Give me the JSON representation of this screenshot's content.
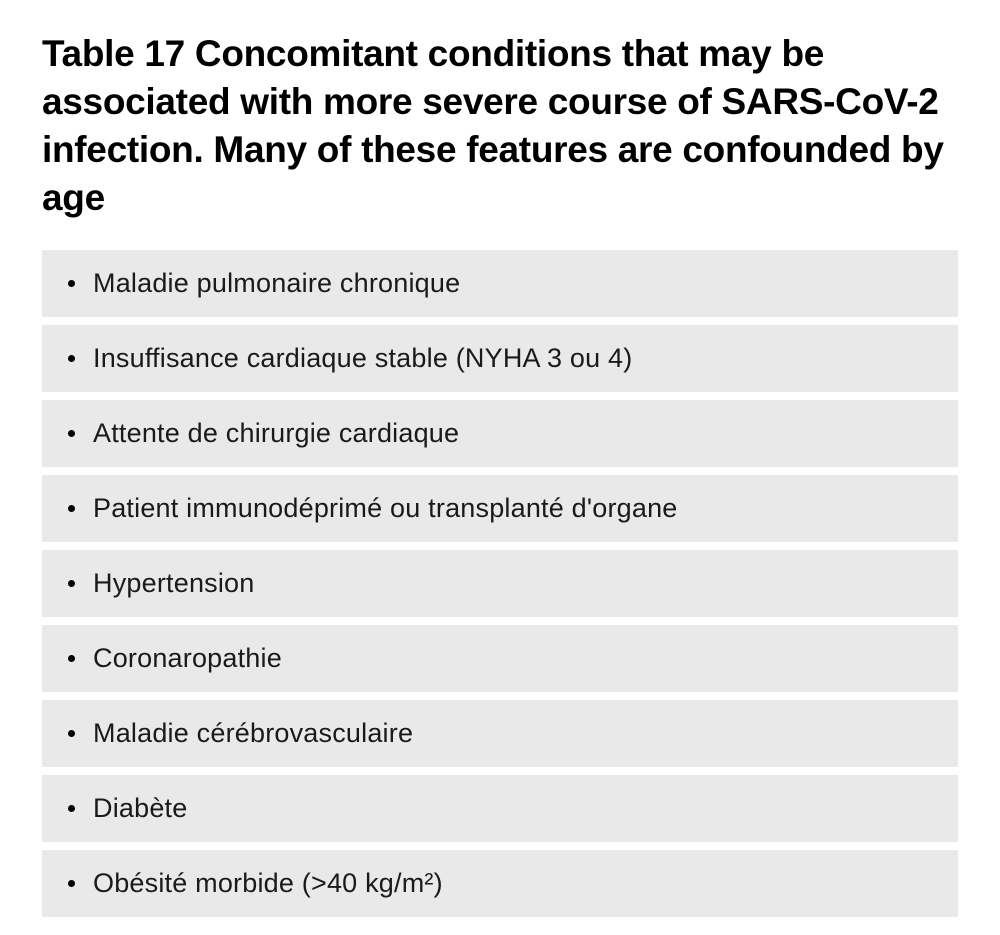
{
  "title": "Table 17 Concomitant conditions that may be associated with more severe course of SARS-CoV-2 infection. Many of these features are confounded by age",
  "items": [
    "Maladie pulmonaire chronique",
    "Insuffisance cardiaque stable (NYHA 3 ou 4)",
    "Attente de chirurgie cardiaque",
    "Patient immunodéprimé ou transplanté d'organe",
    "Hypertension",
    "Coronaropathie",
    "Maladie cérébrovasculaire",
    "Diabète",
    "Obésité morbide (>40 kg/m²)"
  ],
  "styling": {
    "title_fontsize": 37,
    "title_fontweight": 700,
    "title_color": "#000000",
    "item_fontsize": 27,
    "item_fontweight": 400,
    "item_text_color": "#1a1a1a",
    "item_background_color": "#e9e9e9",
    "page_background_color": "#ffffff",
    "bullet_color": "#000000",
    "bullet_size": 7,
    "item_gap": 8,
    "item_padding": "18px 16px 18px 26px"
  }
}
